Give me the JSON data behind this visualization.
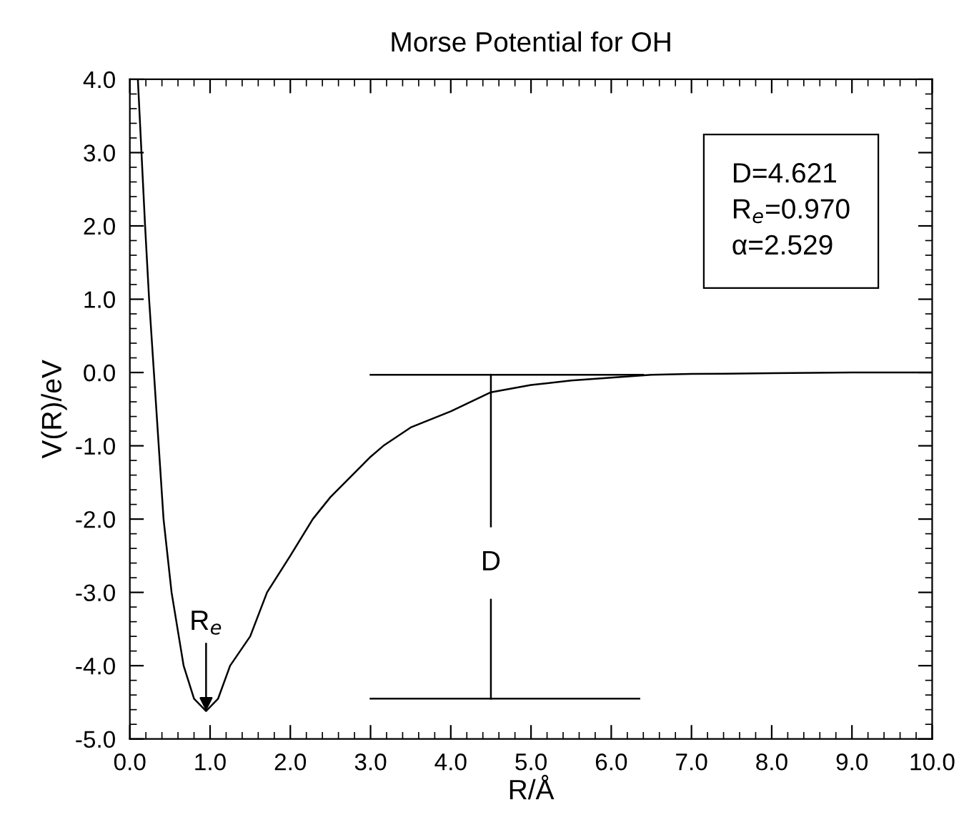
{
  "chart_data": {
    "type": "line",
    "title": "Morse Potential for OH",
    "xlabel": "R/Å",
    "ylabel": "V(R)/eV",
    "series": [
      {
        "color": "#000000",
        "x": [
          0.1,
          0.145,
          0.19,
          0.24,
          0.3,
          0.36,
          0.42,
          0.52,
          0.67,
          0.8,
          0.95,
          1.1,
          1.25,
          1.5,
          1.71,
          2.0,
          2.28,
          2.5,
          3.0,
          3.16,
          3.5,
          4.0,
          4.5,
          5.0,
          5.5,
          6.0,
          6.5,
          7.0,
          8.0,
          9.0,
          10.0
        ],
        "values": [
          4.0,
          3.0,
          2.0,
          1.0,
          0.0,
          -1.0,
          -2.0,
          -3.0,
          -4.0,
          -4.45,
          -4.62,
          -4.45,
          -4.0,
          -3.6,
          -3.0,
          -2.5,
          -2.0,
          -1.7,
          -1.15,
          -1.0,
          -0.75,
          -0.53,
          -0.27,
          -0.17,
          -0.11,
          -0.07,
          -0.03,
          -0.02,
          -0.01,
          0.0,
          0.0
        ]
      },
      {
        "color": "#000000",
        "x": [
          3.0,
          6.4
        ],
        "values": [
          -0.03,
          -0.03
        ]
      },
      {
        "color": "#000000",
        "x": [
          3.0,
          6.35
        ],
        "values": [
          -4.45,
          -4.45
        ]
      },
      {
        "color": "#000000",
        "x": [
          4.5,
          4.5
        ],
        "values": [
          -0.03,
          -2.1
        ]
      },
      {
        "color": "#000000",
        "x": [
          4.5,
          4.5
        ],
        "values": [
          -3.1,
          -4.45
        ]
      }
    ],
    "annotations": [
      {
        "text": "R$_{e}$",
        "x": 0.95,
        "y": -4.62
      },
      "D",
      "D=4.621",
      "R$_{e}$=0.970",
      "α=2.529"
    ],
    "xlim": [
      0,
      10
    ],
    "ylim": [
      -5,
      4
    ],
    "xticks": [
      {
        "value": 0,
        "label": "0.0"
      },
      {
        "value": 1,
        "label": "1.0"
      },
      {
        "value": 2,
        "label": "2.0"
      },
      {
        "value": 3,
        "label": "3.0"
      },
      {
        "value": 4,
        "label": "4.0"
      },
      {
        "value": 5,
        "label": "5.0"
      },
      {
        "value": 6,
        "label": "6.0"
      },
      {
        "value": 7,
        "label": "7.0"
      },
      {
        "value": 8,
        "label": "8.0"
      },
      {
        "value": 9,
        "label": "9.0"
      },
      {
        "value": 10,
        "label": "10.0"
      }
    ],
    "yticks": [
      {
        "value": -5,
        "label": "-5.0"
      },
      {
        "value": -4,
        "label": "-4.0"
      },
      {
        "value": -3,
        "label": "-3.0"
      },
      {
        "value": -2,
        "label": "-2.0"
      },
      {
        "value": -1,
        "label": "-1.0"
      },
      {
        "value": 0,
        "label": "0.0"
      },
      {
        "value": 1,
        "label": "1.0"
      },
      {
        "value": 2,
        "label": "2.0"
      },
      {
        "value": 3,
        "label": "3.0"
      },
      {
        "value": 4,
        "label": "4.0"
      }
    ],
    "grid": false,
    "legend": false,
    "marker": "none",
    "line_style": "solid"
  }
}
